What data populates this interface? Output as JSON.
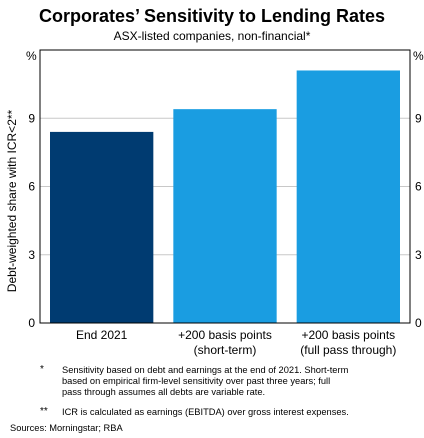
{
  "title": "Corporates’ Sensitivity to Lending Rates",
  "subtitle": "ASX-listed companies, non-financial*",
  "chart_data": {
    "type": "bar",
    "title": "Corporates’ Sensitivity to Lending Rates",
    "subtitle": "ASX-listed companies, non-financial*",
    "ylabel": "Debt-weighted share with ICR<2**",
    "yunit": "%",
    "ylim": [
      0,
      12
    ],
    "yticks": [
      0,
      3,
      6,
      9
    ],
    "ytick_labels": [
      "0",
      "3",
      "6",
      "9"
    ],
    "grid": true,
    "categories": [
      [
        "End 2021"
      ],
      [
        "+200 basis points",
        "(short-term)"
      ],
      [
        "+200 basis points",
        "(full pass through)"
      ]
    ],
    "values": [
      8.4,
      9.4,
      11.1
    ],
    "colors": [
      "#003b71",
      "#1a9de1",
      "#1a9de1"
    ]
  },
  "notes": [
    {
      "mark": "*",
      "lines": [
        "Sensitivity based on debt and earnings at the end of 2021. Short-term",
        "based on empirical firm-level sensitivity over past three years; full",
        "pass through assumes all debts are variable rate."
      ]
    },
    {
      "mark": "**",
      "lines": [
        "ICR is calculated as earnings (EBITDA) over gross interest expenses."
      ]
    }
  ],
  "sources": "Sources: Morningstar; RBA"
}
